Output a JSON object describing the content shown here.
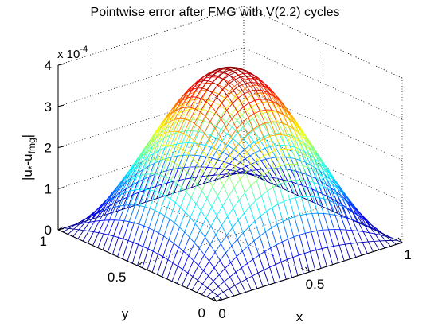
{
  "chart_data": {
    "type": "surface",
    "title": "Pointwise error after FMG with V(2,2) cycles",
    "xlabel": "x",
    "ylabel": "y",
    "zlabel_main": "|u",
    "zlabel_sub1": "*",
    "zlabel_mid": "-u",
    "zlabel_sub2": "fmg",
    "zlabel_end": "|",
    "z_multiplier_base": "x 10",
    "z_multiplier_exp": "-4",
    "xlim": [
      0,
      1
    ],
    "ylim": [
      0,
      1
    ],
    "zlim": [
      0,
      4
    ],
    "x_ticks": [
      "0",
      "0.5",
      "1"
    ],
    "y_ticks": [
      "0",
      "0.5",
      "1"
    ],
    "z_ticks": [
      "0",
      "1",
      "2",
      "3",
      "4"
    ],
    "peak": 4.05,
    "grid_n": 33,
    "colormap": "jet",
    "grid": true
  }
}
